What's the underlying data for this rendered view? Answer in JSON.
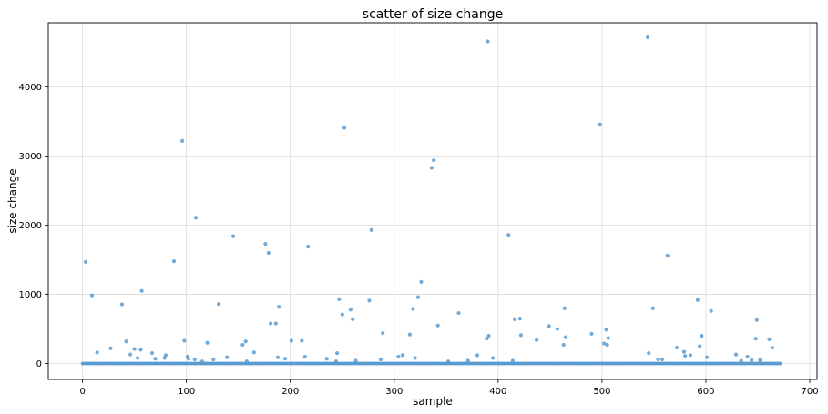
{
  "chart_data": {
    "type": "scatter",
    "title": "scatter of size change",
    "xlabel": "sample",
    "ylabel": "size change",
    "xlim": [
      -33,
      707
    ],
    "ylim": [
      -230,
      4930
    ],
    "xticks": [
      0,
      100,
      200,
      300,
      400,
      500,
      600,
      700
    ],
    "yticks": [
      0,
      1000,
      2000,
      3000,
      4000
    ],
    "grid": true,
    "color": "#5b9bd0",
    "x_range_baseline": [
      0,
      672
    ],
    "baseline_value": 0,
    "points": [
      [
        3,
        1470
      ],
      [
        9,
        985
      ],
      [
        14,
        160
      ],
      [
        27,
        220
      ],
      [
        38,
        855
      ],
      [
        42,
        320
      ],
      [
        46,
        130
      ],
      [
        50,
        210
      ],
      [
        53,
        80
      ],
      [
        56,
        200
      ],
      [
        57,
        1050
      ],
      [
        67,
        150
      ],
      [
        70,
        70
      ],
      [
        79,
        80
      ],
      [
        80,
        120
      ],
      [
        88,
        1480
      ],
      [
        96,
        3220
      ],
      [
        98,
        330
      ],
      [
        101,
        100
      ],
      [
        102,
        70
      ],
      [
        109,
        2110
      ],
      [
        108,
        60
      ],
      [
        115,
        30
      ],
      [
        120,
        300
      ],
      [
        126,
        60
      ],
      [
        131,
        860
      ],
      [
        139,
        90
      ],
      [
        145,
        1840
      ],
      [
        154,
        270
      ],
      [
        157,
        320
      ],
      [
        158,
        30
      ],
      [
        165,
        160
      ],
      [
        176,
        1730
      ],
      [
        179,
        1600
      ],
      [
        181,
        580
      ],
      [
        186,
        580
      ],
      [
        188,
        90
      ],
      [
        189,
        820
      ],
      [
        195,
        70
      ],
      [
        201,
        330
      ],
      [
        211,
        330
      ],
      [
        214,
        100
      ],
      [
        217,
        1690
      ],
      [
        235,
        70
      ],
      [
        244,
        30
      ],
      [
        245,
        150
      ],
      [
        247,
        930
      ],
      [
        250,
        710
      ],
      [
        252,
        3410
      ],
      [
        258,
        780
      ],
      [
        260,
        640
      ],
      [
        263,
        40
      ],
      [
        276,
        910
      ],
      [
        278,
        1930
      ],
      [
        287,
        60
      ],
      [
        289,
        440
      ],
      [
        304,
        100
      ],
      [
        308,
        120
      ],
      [
        315,
        420
      ],
      [
        318,
        790
      ],
      [
        320,
        80
      ],
      [
        323,
        960
      ],
      [
        326,
        1180
      ],
      [
        336,
        2830
      ],
      [
        338,
        2940
      ],
      [
        342,
        550
      ],
      [
        352,
        30
      ],
      [
        362,
        730
      ],
      [
        371,
        40
      ],
      [
        380,
        120
      ],
      [
        389,
        360
      ],
      [
        390,
        4660
      ],
      [
        391,
        400
      ],
      [
        395,
        80
      ],
      [
        410,
        1860
      ],
      [
        414,
        40
      ],
      [
        416,
        640
      ],
      [
        421,
        650
      ],
      [
        422,
        410
      ],
      [
        437,
        340
      ],
      [
        449,
        540
      ],
      [
        457,
        500
      ],
      [
        463,
        270
      ],
      [
        464,
        800
      ],
      [
        465,
        380
      ],
      [
        490,
        430
      ],
      [
        498,
        3460
      ],
      [
        502,
        290
      ],
      [
        504,
        490
      ],
      [
        505,
        270
      ],
      [
        506,
        370
      ],
      [
        544,
        4720
      ],
      [
        545,
        150
      ],
      [
        549,
        800
      ],
      [
        554,
        60
      ],
      [
        558,
        60
      ],
      [
        563,
        1560
      ],
      [
        572,
        230
      ],
      [
        579,
        170
      ],
      [
        580,
        110
      ],
      [
        585,
        120
      ],
      [
        592,
        920
      ],
      [
        594,
        250
      ],
      [
        596,
        400
      ],
      [
        601,
        90
      ],
      [
        605,
        760
      ],
      [
        629,
        130
      ],
      [
        634,
        40
      ],
      [
        640,
        100
      ],
      [
        644,
        50
      ],
      [
        648,
        360
      ],
      [
        649,
        630
      ],
      [
        652,
        50
      ],
      [
        661,
        350
      ],
      [
        664,
        230
      ]
    ]
  }
}
